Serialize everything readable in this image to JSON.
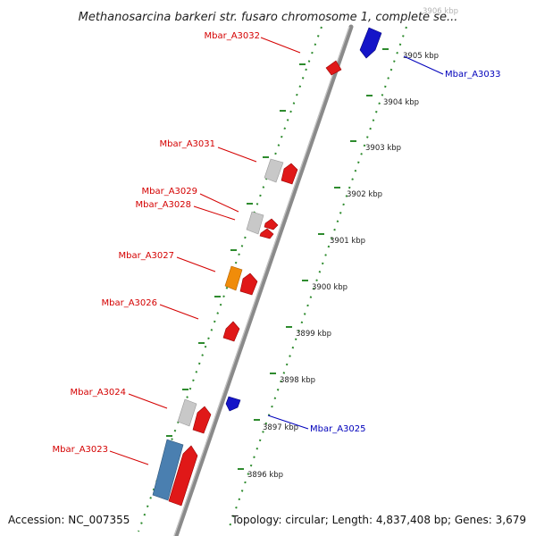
{
  "title": "Methanosarcina barkeri str. fusaro chromosome 1, complete se...",
  "accession": "Accession: NC_007355",
  "summary": "Topology: circular; Length: 4,837,408 bp; Genes: 3,679",
  "colors": {
    "backbone": "#8a8a8a",
    "tick": "#2e8b2e",
    "forward_gene": "#e01818",
    "reverse_gene": "#1515c8",
    "gray_gene": "#c8c8c8",
    "orange_gene": "#f08c0a",
    "steelblue_gene": "#4a7fb0",
    "forward_label": "#d40000",
    "reverse_label": "#0000bb"
  },
  "ticks": [
    {
      "label": "3896 kbp"
    },
    {
      "label": "3897 kbp"
    },
    {
      "label": "3898 kbp"
    },
    {
      "label": "3899 kbp"
    },
    {
      "label": "3900 kbp"
    },
    {
      "label": "3901 kbp"
    },
    {
      "label": "3902 kbp"
    },
    {
      "label": "3903 kbp"
    },
    {
      "label": "3904 kbp"
    },
    {
      "label": "3905 kbp"
    },
    {
      "label": "3906 kbp"
    }
  ],
  "gene_labels": [
    {
      "name": "Mbar_A3032",
      "strand": "forward"
    },
    {
      "name": "Mbar_A3031",
      "strand": "forward"
    },
    {
      "name": "Mbar_A3029",
      "strand": "forward"
    },
    {
      "name": "Mbar_A3028",
      "strand": "forward"
    },
    {
      "name": "Mbar_A3027",
      "strand": "forward"
    },
    {
      "name": "Mbar_A3026",
      "strand": "forward"
    },
    {
      "name": "Mbar_A3024",
      "strand": "forward"
    },
    {
      "name": "Mbar_A3023",
      "strand": "forward"
    },
    {
      "name": "Mbar_A3033",
      "strand": "reverse"
    },
    {
      "name": "Mbar_A3025",
      "strand": "reverse"
    }
  ]
}
